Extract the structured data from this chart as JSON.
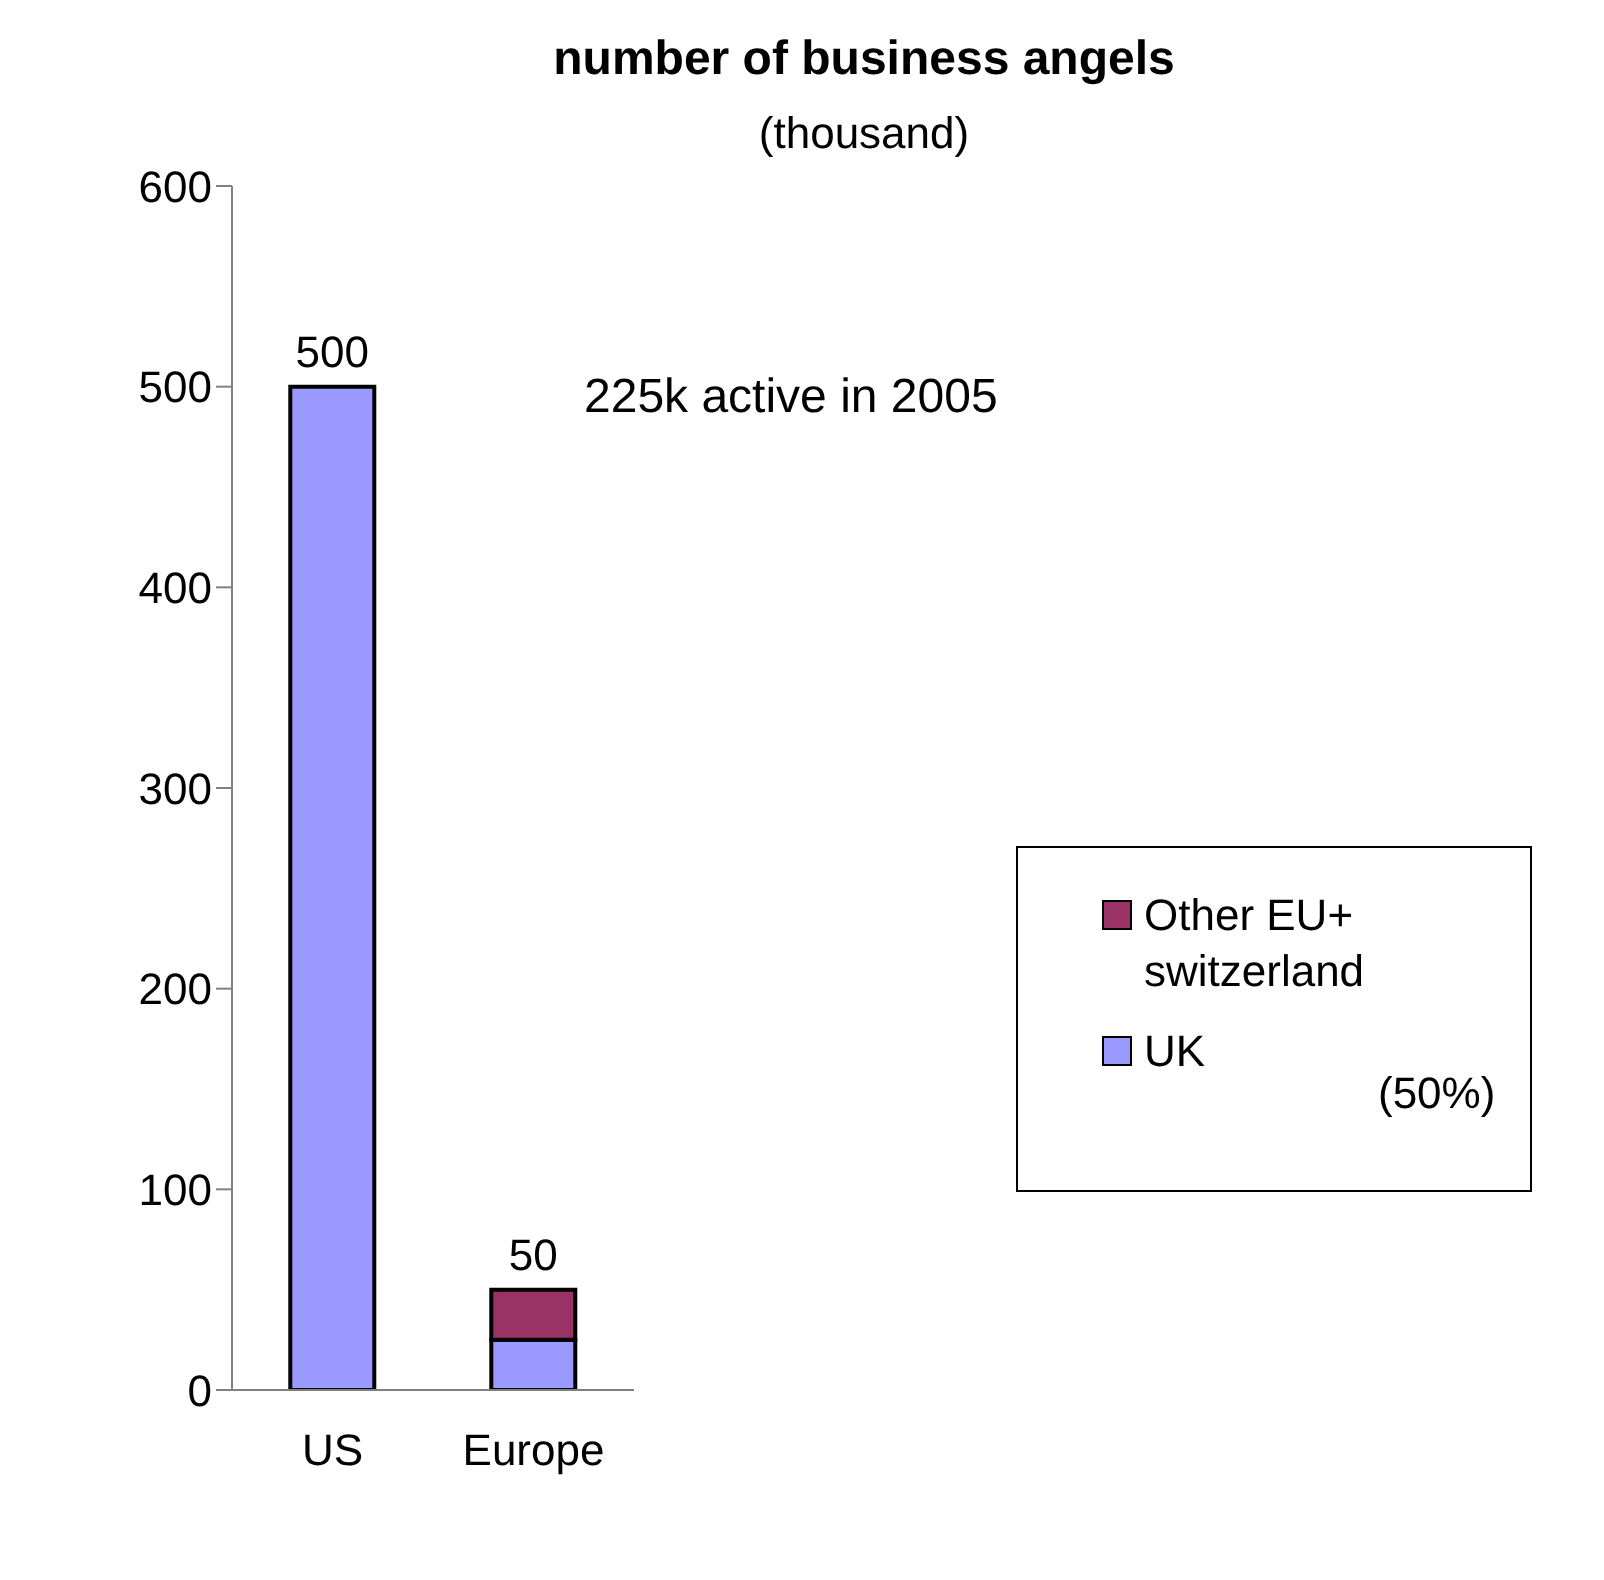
{
  "chart_data": {
    "type": "bar",
    "title": "number of business angels",
    "subtitle": "(thousand)",
    "categories": [
      "US",
      "Europe"
    ],
    "stacked": true,
    "series": [
      {
        "name": "UK",
        "color": "#9999ff",
        "values": [
          500,
          25
        ]
      },
      {
        "name": "Other EU+ switzerland",
        "color": "#993366",
        "values": [
          null,
          25
        ]
      }
    ],
    "totals": [
      "500",
      "50"
    ],
    "ylim": [
      0,
      600
    ],
    "yticks": [
      0,
      100,
      200,
      300,
      400,
      500,
      600
    ],
    "grid": false,
    "legend": "right",
    "annotations": [
      "225k active in 2005",
      "(50%)"
    ]
  }
}
